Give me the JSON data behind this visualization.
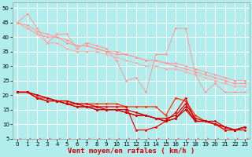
{
  "xlabel": "Vent moyen/en rafales ( km/h )",
  "background_color": "#b2eded",
  "grid_color": "#ffffff",
  "xlim": [
    -0.5,
    23.5
  ],
  "ylim": [
    5,
    52
  ],
  "yticks": [
    5,
    10,
    15,
    20,
    25,
    30,
    35,
    40,
    45,
    50
  ],
  "xticks": [
    0,
    1,
    2,
    3,
    4,
    5,
    6,
    7,
    8,
    9,
    10,
    11,
    12,
    13,
    14,
    15,
    16,
    17,
    18,
    19,
    20,
    21,
    22,
    23
  ],
  "series": [
    {
      "x": [
        0,
        1,
        2,
        3,
        4,
        5,
        6,
        7,
        8,
        9,
        10,
        11,
        12,
        13,
        14,
        15,
        16,
        17,
        18,
        19,
        20,
        21,
        22,
        23
      ],
      "y": [
        45,
        48,
        43,
        38,
        41,
        41,
        36,
        38,
        37,
        36,
        32,
        25,
        26,
        21,
        34,
        34,
        43,
        43,
        27,
        21,
        24,
        21,
        21,
        21
      ],
      "color": "#ff9999",
      "lw": 0.7,
      "marker": "D",
      "ms": 1.5
    },
    {
      "x": [
        0,
        1,
        2,
        3,
        4,
        5,
        6,
        7,
        8,
        9,
        10,
        11,
        12,
        13,
        14,
        15,
        16,
        17,
        18,
        19,
        20,
        21,
        22,
        23
      ],
      "y": [
        45,
        43,
        41,
        40,
        40,
        38,
        37,
        37,
        36,
        35,
        34,
        34,
        33,
        32,
        32,
        31,
        31,
        30,
        29,
        28,
        27,
        26,
        25,
        25
      ],
      "color": "#ff9999",
      "lw": 0.7,
      "marker": "D",
      "ms": 1.5
    },
    {
      "x": [
        0,
        1,
        2,
        3,
        4,
        5,
        6,
        7,
        8,
        9,
        10,
        11,
        12,
        13,
        14,
        15,
        16,
        17,
        18,
        19,
        20,
        21,
        22,
        23
      ],
      "y": [
        45,
        44,
        42,
        41,
        40,
        39,
        37,
        37,
        36,
        35,
        35,
        34,
        33,
        32,
        32,
        31,
        30,
        29,
        28,
        27,
        26,
        25,
        24,
        24
      ],
      "color": "#ff9999",
      "lw": 0.7,
      "marker": "D",
      "ms": 1.5
    },
    {
      "x": [
        0,
        1,
        2,
        3,
        4,
        5,
        6,
        7,
        8,
        9,
        10,
        11,
        12,
        13,
        14,
        15,
        16,
        17,
        18,
        19,
        20,
        21,
        22,
        23
      ],
      "y": [
        45,
        43,
        41,
        38,
        38,
        36,
        35,
        35,
        35,
        34,
        33,
        32,
        31,
        30,
        30,
        29,
        29,
        28,
        27,
        26,
        25,
        24,
        23,
        23
      ],
      "color": "#ffaaaa",
      "lw": 0.7,
      "marker": "D",
      "ms": 1.5
    },
    {
      "x": [
        0,
        1,
        2,
        3,
        4,
        5,
        6,
        7,
        8,
        9,
        10,
        11,
        12,
        13,
        14,
        15,
        16,
        17,
        18,
        19,
        20,
        21,
        22,
        23
      ],
      "y": [
        21,
        21,
        19,
        19,
        18,
        18,
        17,
        17,
        17,
        17,
        17,
        16,
        16,
        16,
        16,
        13,
        19,
        18,
        13,
        11,
        10,
        8,
        8,
        9
      ],
      "color": "#ff3300",
      "lw": 0.9,
      "marker": "D",
      "ms": 1.5
    },
    {
      "x": [
        0,
        1,
        2,
        3,
        4,
        5,
        6,
        7,
        8,
        9,
        10,
        11,
        12,
        13,
        14,
        15,
        16,
        17,
        18,
        19,
        20,
        21,
        22,
        23
      ],
      "y": [
        21,
        21,
        19,
        18,
        18,
        17,
        17,
        17,
        16,
        16,
        16,
        16,
        8,
        8,
        9,
        11,
        14,
        19,
        11,
        11,
        10,
        8,
        8,
        8
      ],
      "color": "#ff0000",
      "lw": 0.9,
      "marker": "D",
      "ms": 1.5
    },
    {
      "x": [
        0,
        1,
        2,
        3,
        4,
        5,
        6,
        7,
        8,
        9,
        10,
        11,
        12,
        13,
        14,
        15,
        16,
        17,
        18,
        19,
        20,
        21,
        22,
        23
      ],
      "y": [
        21,
        21,
        20,
        19,
        18,
        18,
        17,
        16,
        16,
        15,
        15,
        15,
        14,
        13,
        12,
        12,
        13,
        17,
        12,
        11,
        11,
        9,
        8,
        9
      ],
      "color": "#cc0000",
      "lw": 0.9,
      "marker": "D",
      "ms": 1.5
    },
    {
      "x": [
        0,
        1,
        2,
        3,
        4,
        5,
        6,
        7,
        8,
        9,
        10,
        11,
        12,
        13,
        14,
        15,
        16,
        17,
        18,
        19,
        20,
        21,
        22,
        23
      ],
      "y": [
        21,
        21,
        20,
        19,
        18,
        17,
        16,
        16,
        15,
        15,
        15,
        14,
        13,
        13,
        12,
        11,
        12,
        16,
        11,
        11,
        10,
        9,
        8,
        9
      ],
      "color": "#cc0000",
      "lw": 0.9,
      "marker": "D",
      "ms": 1.5
    },
    {
      "x": [
        0,
        1,
        2,
        3,
        4,
        5,
        6,
        7,
        8,
        9,
        10,
        11,
        12,
        13,
        14,
        15,
        16,
        17,
        18,
        19,
        20,
        21,
        22,
        23
      ],
      "y": [
        21,
        21,
        19,
        18,
        18,
        17,
        16,
        16,
        15,
        15,
        15,
        14,
        13,
        13,
        12,
        11,
        12,
        15,
        11,
        11,
        10,
        9,
        8,
        9
      ],
      "color": "#dd0000",
      "lw": 0.9,
      "marker": "D",
      "ms": 1.5
    }
  ],
  "arrow_color": "#ff6666",
  "xlabel_color": "#cc0000",
  "xlabel_fontsize": 6.5,
  "tick_fontsize": 5,
  "figsize": [
    3.2,
    2.0
  ],
  "dpi": 100
}
